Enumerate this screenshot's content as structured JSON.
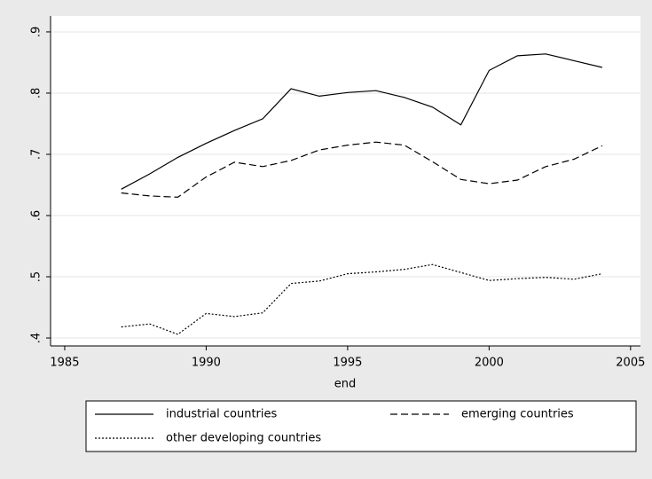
{
  "chart_data": {
    "type": "line",
    "x_label": "end",
    "x": [
      1987,
      1988,
      1989,
      1990,
      1991,
      1992,
      1993,
      1994,
      1995,
      1996,
      1997,
      1998,
      1999,
      2000,
      2001,
      2002,
      2003,
      2004
    ],
    "series": [
      {
        "name": "industrial countries",
        "color": "#000000",
        "style": "solid",
        "values": [
          0.643,
          0.668,
          0.695,
          0.718,
          0.739,
          0.758,
          0.807,
          0.795,
          0.801,
          0.804,
          0.793,
          0.777,
          0.748,
          0.837,
          0.861,
          0.864,
          0.853,
          0.842
        ]
      },
      {
        "name": "emerging countries",
        "color": "#000000",
        "style": "dash",
        "values": [
          0.637,
          0.632,
          0.63,
          0.663,
          0.687,
          0.68,
          0.69,
          0.707,
          0.715,
          0.72,
          0.715,
          0.688,
          0.659,
          0.652,
          0.658,
          0.68,
          0.692,
          0.714
        ]
      },
      {
        "name": "other developing countries",
        "color": "#000000",
        "style": "dot",
        "values": [
          0.418,
          0.423,
          0.406,
          0.44,
          0.435,
          0.441,
          0.489,
          0.493,
          0.505,
          0.508,
          0.512,
          0.52,
          0.507,
          0.494,
          0.497,
          0.499,
          0.496,
          0.505
        ]
      }
    ],
    "xlim": [
      1984.5,
      2005.35
    ],
    "xticks": [
      1985,
      1990,
      1995,
      2000,
      2005
    ],
    "ylim": [
      0.387,
      0.926
    ],
    "yticks": [
      {
        "value": 0.4,
        "label": ".4"
      },
      {
        "value": 0.5,
        "label": ".5"
      },
      {
        "value": 0.6,
        "label": ".6"
      },
      {
        "value": 0.7,
        "label": ".7"
      },
      {
        "value": 0.8,
        "label": ".8"
      },
      {
        "value": 0.9,
        "label": ".9"
      }
    ],
    "grid": true,
    "legend_position": "bottom"
  }
}
